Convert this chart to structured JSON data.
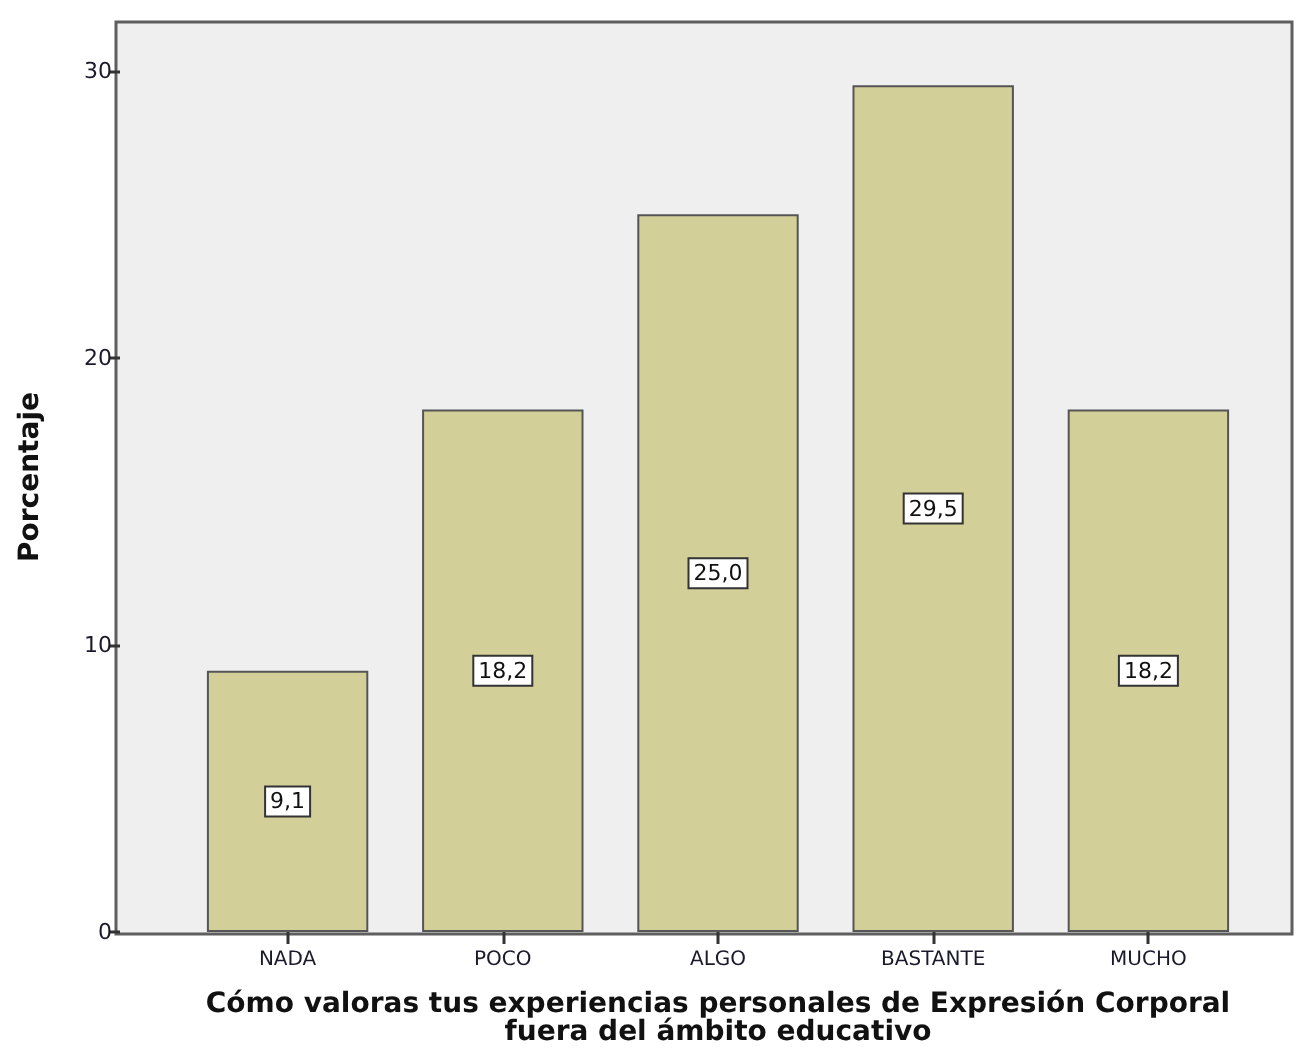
{
  "chart_data": {
    "type": "bar",
    "xlabel": "Cómo valoras tus experiencias personales de Expresión Corporal\nfuera del ámbito educativo",
    "ylabel": "Porcentaje",
    "categories": [
      "NADA",
      "POCO",
      "ALGO",
      "BASTANTE",
      "MUCHO"
    ],
    "values": [
      9.1,
      18.2,
      25.0,
      29.5,
      18.2
    ],
    "value_labels": [
      "9,1",
      "18,2",
      "25,0",
      "29,5",
      "18,2"
    ],
    "color": "#d3cf98",
    "ylim": [
      0,
      31.7
    ],
    "yticks": [
      0,
      10,
      20,
      30
    ],
    "grid": false
  }
}
